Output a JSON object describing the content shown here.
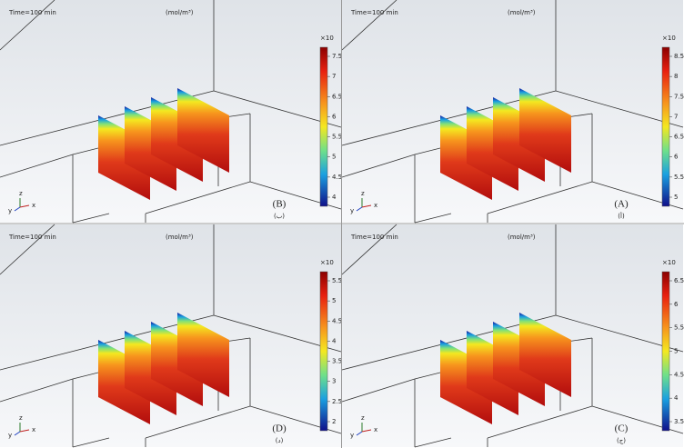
{
  "axis_labels": {
    "x": "x",
    "y": "y",
    "z": "z"
  },
  "panels": [
    {
      "time": "Time=100 min",
      "unit": "(mol/m³)",
      "scale": "×10",
      "label": "(B)",
      "sublabel": "(ب)",
      "ticks": [
        "7.5",
        "7",
        "6.5",
        "6",
        "5.5",
        "5",
        "4.5",
        "4"
      ]
    },
    {
      "time": "Time=100 min",
      "unit": "(mol/m³)",
      "scale": "×10",
      "label": "(A)",
      "sublabel": "(أ)",
      "ticks": [
        "8.5",
        "8",
        "7.5",
        "7",
        "6.5",
        "6",
        "5.5",
        "5"
      ]
    },
    {
      "time": "Time=100 min",
      "unit": "(mol/m³)",
      "scale": "×10",
      "label": "(D)",
      "sublabel": "(د)",
      "ticks": [
        "5.5",
        "5",
        "4.5",
        "4",
        "3.5",
        "3",
        "2.5",
        "2"
      ]
    },
    {
      "time": "Time=100 min",
      "unit": "(mol/m³)",
      "scale": "×10",
      "label": "(C)",
      "sublabel": "(ج)",
      "ticks": [
        "6.5",
        "6",
        "5.5",
        "5",
        "4.5",
        "4",
        "3.5"
      ]
    }
  ]
}
